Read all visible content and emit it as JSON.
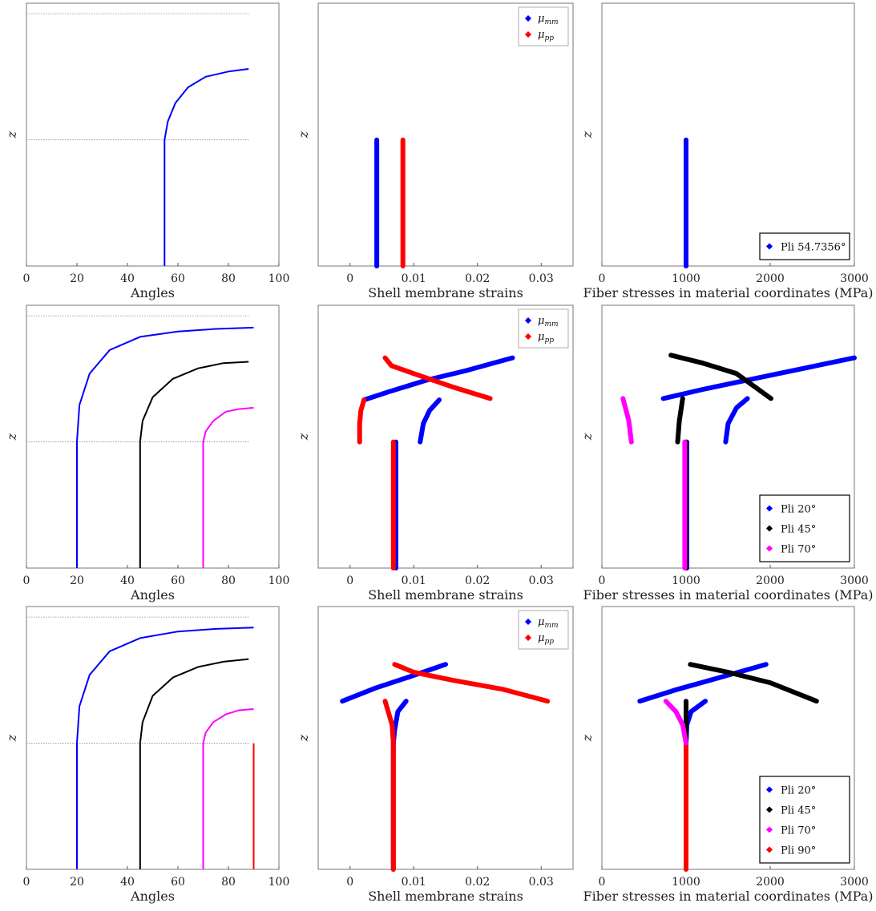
{
  "figure": {
    "zlabel": "z",
    "colors": {
      "blue": "#0000ff",
      "black": "#000000",
      "magenta": "#ff00ff",
      "red": "#ff0000",
      "grid": "#888888"
    }
  },
  "chart_data": [
    {
      "type": "line",
      "id": "angles-1",
      "xlabel": "Angles",
      "ylabel": "z",
      "xlim": [
        0,
        100
      ],
      "xticks": [
        0,
        20,
        40,
        60,
        80,
        100
      ],
      "ylim": [
        0,
        1
      ],
      "reference_lines_y": [
        0.48,
        0.96
      ],
      "series": [
        {
          "color": "#0000ff",
          "points": [
            [
              54.7,
              0
            ],
            [
              54.7,
              0.48
            ],
            [
              56,
              0.55
            ],
            [
              59,
              0.62
            ],
            [
              64,
              0.68
            ],
            [
              71,
              0.72
            ],
            [
              80,
              0.74
            ],
            [
              88,
              0.75
            ]
          ]
        }
      ]
    },
    {
      "type": "scatter",
      "id": "strains-1",
      "xlabel": "Shell membrane strains",
      "ylabel": "z",
      "xlim": [
        -0.005,
        0.035
      ],
      "xticks": [
        0,
        0.01,
        0.02,
        0.03
      ],
      "ylim": [
        0,
        1
      ],
      "legend": {
        "position": "top-right",
        "entries": [
          {
            "base": "μ",
            "sub": "mm",
            "color": "#0000ff"
          },
          {
            "base": "μ",
            "sub": "pp",
            "color": "#ff0000"
          }
        ]
      },
      "series": [
        {
          "color": "#0000ff",
          "points": [
            [
              0.0042,
              0
            ],
            [
              0.0042,
              0.48
            ]
          ]
        },
        {
          "color": "#ff0000",
          "points": [
            [
              0.0083,
              0
            ],
            [
              0.0083,
              0.48
            ]
          ]
        }
      ]
    },
    {
      "type": "scatter",
      "id": "stresses-1",
      "xlabel": "Fiber stresses in material coordinates (MPa)",
      "ylabel": "z",
      "xlim": [
        0,
        3000
      ],
      "xticks": [
        0,
        1000,
        2000,
        3000
      ],
      "ylim": [
        0,
        1
      ],
      "legend": {
        "position": "bottom-right",
        "entries": [
          {
            "label": "Pli 54.7356°",
            "color": "#0000ff"
          }
        ]
      },
      "series": [
        {
          "color": "#0000ff",
          "points": [
            [
              1000,
              0
            ],
            [
              1000,
              0.48
            ]
          ]
        }
      ]
    },
    {
      "type": "line",
      "id": "angles-2",
      "xlabel": "Angles",
      "ylabel": "z",
      "xlim": [
        0,
        100
      ],
      "xticks": [
        0,
        20,
        40,
        60,
        80,
        100
      ],
      "ylim": [
        0,
        1
      ],
      "reference_lines_y": [
        0.48,
        0.96
      ],
      "series": [
        {
          "color": "#0000ff",
          "points": [
            [
              20,
              0
            ],
            [
              20,
              0.48
            ],
            [
              21,
              0.62
            ],
            [
              25,
              0.74
            ],
            [
              33,
              0.83
            ],
            [
              45,
              0.88
            ],
            [
              60,
              0.9
            ],
            [
              75,
              0.91
            ],
            [
              90,
              0.915
            ]
          ]
        },
        {
          "color": "#000000",
          "points": [
            [
              45,
              0
            ],
            [
              45,
              0.48
            ],
            [
              46,
              0.56
            ],
            [
              50,
              0.65
            ],
            [
              58,
              0.72
            ],
            [
              68,
              0.76
            ],
            [
              78,
              0.78
            ],
            [
              88,
              0.785
            ]
          ]
        },
        {
          "color": "#ff00ff",
          "points": [
            [
              70,
              0
            ],
            [
              70,
              0.48
            ],
            [
              71,
              0.52
            ],
            [
              74,
              0.56
            ],
            [
              79,
              0.595
            ],
            [
              84,
              0.605
            ],
            [
              90,
              0.61
            ]
          ]
        }
      ]
    },
    {
      "type": "scatter",
      "id": "strains-2",
      "xlabel": "Shell membrane strains",
      "ylabel": "z",
      "xlim": [
        -0.005,
        0.035
      ],
      "xticks": [
        0,
        0.01,
        0.02,
        0.03
      ],
      "ylim": [
        0,
        1
      ],
      "legend": {
        "position": "top-right",
        "entries": [
          {
            "base": "μ",
            "sub": "mm",
            "color": "#0000ff"
          },
          {
            "base": "μ",
            "sub": "pp",
            "color": "#ff0000"
          }
        ]
      },
      "series": [
        {
          "color": "#0000ff",
          "points": [
            [
              0.0072,
              0
            ],
            [
              0.0072,
              0.48
            ]
          ]
        },
        {
          "color": "#ff0000",
          "points": [
            [
              0.0068,
              0
            ],
            [
              0.0068,
              0.48
            ]
          ]
        },
        {
          "color": "#0000ff",
          "points": [
            [
              0.0022,
              0.64
            ],
            [
              0.006,
              0.67
            ],
            [
              0.012,
              0.715
            ],
            [
              0.018,
              0.75
            ],
            [
              0.0255,
              0.8
            ]
          ]
        },
        {
          "color": "#ff0000",
          "points": [
            [
              0.0055,
              0.8
            ],
            [
              0.0065,
              0.77
            ],
            [
              0.01,
              0.74
            ],
            [
              0.016,
              0.69
            ],
            [
              0.022,
              0.645
            ]
          ]
        },
        {
          "color": "#0000ff",
          "points": [
            [
              0.011,
              0.48
            ],
            [
              0.0115,
              0.55
            ],
            [
              0.0125,
              0.6
            ],
            [
              0.014,
              0.64
            ]
          ]
        },
        {
          "color": "#ff0000",
          "points": [
            [
              0.0015,
              0.48
            ],
            [
              0.0015,
              0.55
            ],
            [
              0.0017,
              0.6
            ],
            [
              0.0022,
              0.64
            ]
          ]
        }
      ]
    },
    {
      "type": "scatter",
      "id": "stresses-2",
      "xlabel": "Fiber stresses in material coordinates (MPa)",
      "ylabel": "z",
      "xlim": [
        0,
        3000
      ],
      "xticks": [
        0,
        1000,
        2000,
        3000
      ],
      "ylim": [
        0,
        1
      ],
      "legend": {
        "position": "bottom-right",
        "entries": [
          {
            "label": "Pli 20°",
            "color": "#0000ff"
          },
          {
            "label": "Pli 45°",
            "color": "#000000"
          },
          {
            "label": "Pli 70°",
            "color": "#ff00ff"
          }
        ]
      },
      "series": [
        {
          "color": "#0000ff",
          "points": [
            [
              1010,
              0
            ],
            [
              1010,
              0.48
            ]
          ]
        },
        {
          "color": "#000000",
          "points": [
            [
              1000,
              0
            ],
            [
              1000,
              0.48
            ]
          ]
        },
        {
          "color": "#ff00ff",
          "points": [
            [
              985,
              0
            ],
            [
              985,
              0.48
            ]
          ]
        },
        {
          "color": "#0000ff",
          "points": [
            [
              730,
              0.645
            ],
            [
              1200,
              0.68
            ],
            [
              1800,
              0.72
            ],
            [
              2400,
              0.76
            ],
            [
              3000,
              0.8
            ]
          ]
        },
        {
          "color": "#000000",
          "points": [
            [
              820,
              0.81
            ],
            [
              1200,
              0.78
            ],
            [
              1600,
              0.74
            ],
            [
              2010,
              0.645
            ]
          ]
        },
        {
          "color": "#0000ff",
          "points": [
            [
              1470,
              0.48
            ],
            [
              1500,
              0.55
            ],
            [
              1600,
              0.61
            ],
            [
              1730,
              0.645
            ]
          ]
        },
        {
          "color": "#000000",
          "points": [
            [
              900,
              0.48
            ],
            [
              920,
              0.56
            ],
            [
              960,
              0.645
            ]
          ]
        },
        {
          "color": "#ff00ff",
          "points": [
            [
              350,
              0.48
            ],
            [
              320,
              0.56
            ],
            [
              250,
              0.645
            ]
          ]
        }
      ]
    },
    {
      "type": "line",
      "id": "angles-3",
      "xlabel": "Angles",
      "ylabel": "z",
      "xlim": [
        0,
        100
      ],
      "xticks": [
        0,
        20,
        40,
        60,
        80,
        100
      ],
      "ylim": [
        0,
        1
      ],
      "reference_lines_y": [
        0.48,
        0.96
      ],
      "series": [
        {
          "color": "#0000ff",
          "points": [
            [
              20,
              0
            ],
            [
              20,
              0.48
            ],
            [
              21,
              0.62
            ],
            [
              25,
              0.74
            ],
            [
              33,
              0.83
            ],
            [
              45,
              0.88
            ],
            [
              60,
              0.905
            ],
            [
              75,
              0.915
            ],
            [
              90,
              0.92
            ]
          ]
        },
        {
          "color": "#000000",
          "points": [
            [
              45,
              0
            ],
            [
              45,
              0.48
            ],
            [
              46,
              0.56
            ],
            [
              50,
              0.66
            ],
            [
              58,
              0.73
            ],
            [
              68,
              0.77
            ],
            [
              78,
              0.79
            ],
            [
              88,
              0.8
            ]
          ]
        },
        {
          "color": "#ff00ff",
          "points": [
            [
              70,
              0
            ],
            [
              70,
              0.48
            ],
            [
              71,
              0.52
            ],
            [
              74,
              0.56
            ],
            [
              79,
              0.59
            ],
            [
              84,
              0.605
            ],
            [
              90,
              0.61
            ]
          ]
        },
        {
          "color": "#ff0000",
          "points": [
            [
              90,
              0
            ],
            [
              90,
              0.48
            ]
          ]
        }
      ]
    },
    {
      "type": "scatter",
      "id": "strains-3",
      "xlabel": "Shell membrane strains",
      "ylabel": "z",
      "xlim": [
        -0.005,
        0.035
      ],
      "xticks": [
        0,
        0.01,
        0.02,
        0.03
      ],
      "ylim": [
        0,
        1
      ],
      "legend": {
        "position": "top-right",
        "entries": [
          {
            "base": "μ",
            "sub": "mm",
            "color": "#0000ff"
          },
          {
            "base": "μ",
            "sub": "pp",
            "color": "#ff0000"
          }
        ]
      },
      "series": [
        {
          "color": "#0000ff",
          "points": [
            [
              0.0068,
              0
            ],
            [
              0.0068,
              0.48
            ]
          ]
        },
        {
          "color": "#ff0000",
          "points": [
            [
              0.0068,
              0
            ],
            [
              0.0068,
              0.48
            ]
          ]
        },
        {
          "color": "#0000ff",
          "points": [
            [
              -0.0012,
              0.64
            ],
            [
              0.004,
              0.69
            ],
            [
              0.009,
              0.73
            ],
            [
              0.015,
              0.78
            ]
          ]
        },
        {
          "color": "#ff0000",
          "points": [
            [
              0.007,
              0.78
            ],
            [
              0.01,
              0.75
            ],
            [
              0.016,
              0.72
            ],
            [
              0.024,
              0.685
            ],
            [
              0.031,
              0.64
            ]
          ]
        },
        {
          "color": "#0000ff",
          "points": [
            [
              0.0068,
              0.48
            ],
            [
              0.007,
              0.53
            ],
            [
              0.0075,
              0.6
            ],
            [
              0.0088,
              0.64
            ]
          ]
        },
        {
          "color": "#ff0000",
          "points": [
            [
              0.0068,
              0.48
            ],
            [
              0.0066,
              0.55
            ],
            [
              0.006,
              0.6
            ],
            [
              0.0055,
              0.64
            ]
          ]
        }
      ]
    },
    {
      "type": "scatter",
      "id": "stresses-3",
      "xlabel": "Fiber stresses in material coordinates (MPa)",
      "ylabel": "z",
      "xlim": [
        0,
        3000
      ],
      "xticks": [
        0,
        1000,
        2000,
        3000
      ],
      "ylim": [
        0,
        1
      ],
      "legend": {
        "position": "bottom-right",
        "entries": [
          {
            "label": "Pli 20°",
            "color": "#0000ff"
          },
          {
            "label": "Pli 45°",
            "color": "#000000"
          },
          {
            "label": "Pli 70°",
            "color": "#ff00ff"
          },
          {
            "label": "Pli 90°",
            "color": "#ff0000"
          }
        ]
      },
      "series": [
        {
          "color": "#ff0000",
          "points": [
            [
              1000,
              0
            ],
            [
              1000,
              0.48
            ]
          ]
        },
        {
          "color": "#0000ff",
          "points": [
            [
              450,
              0.64
            ],
            [
              900,
              0.685
            ],
            [
              1400,
              0.73
            ],
            [
              1950,
              0.78
            ]
          ]
        },
        {
          "color": "#000000",
          "points": [
            [
              1050,
              0.78
            ],
            [
              1500,
              0.75
            ],
            [
              2000,
              0.71
            ],
            [
              2550,
              0.64
            ]
          ]
        },
        {
          "color": "#0000ff",
          "points": [
            [
              1000,
              0.48
            ],
            [
              1010,
              0.55
            ],
            [
              1060,
              0.6
            ],
            [
              1230,
              0.64
            ]
          ]
        },
        {
          "color": "#000000",
          "points": [
            [
              1000,
              0.48
            ],
            [
              1000,
              0.64
            ]
          ]
        },
        {
          "color": "#ff00ff",
          "points": [
            [
              1000,
              0.48
            ],
            [
              960,
              0.55
            ],
            [
              880,
              0.6
            ],
            [
              760,
              0.64
            ]
          ]
        }
      ]
    }
  ]
}
